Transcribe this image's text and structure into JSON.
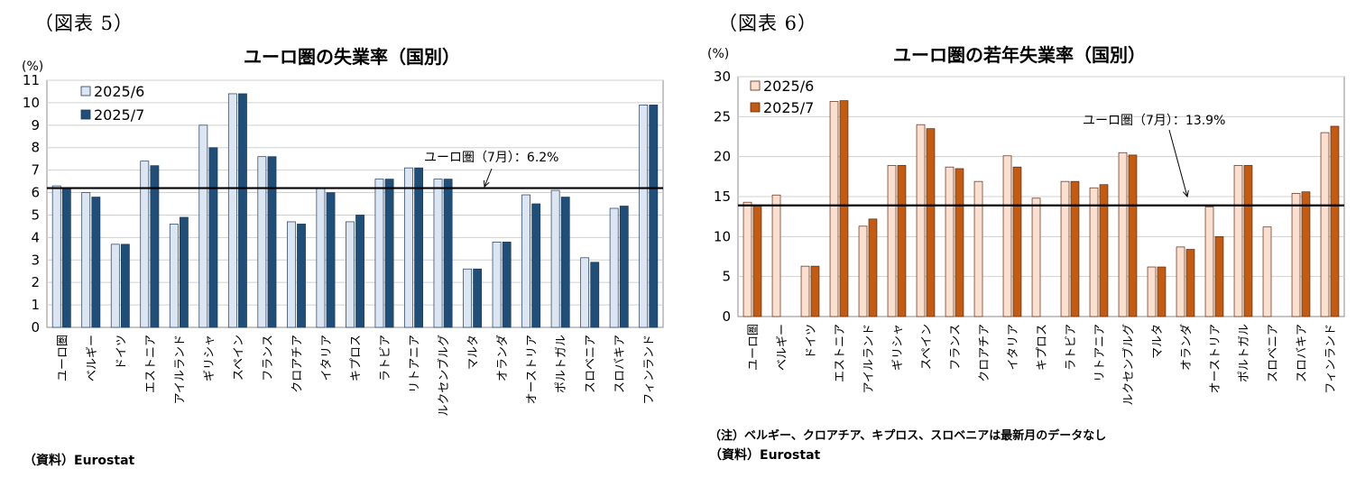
{
  "fig5": {
    "label": "（図表 5）",
    "source": "（資料）Eurostat"
  },
  "fig6": {
    "label": "（図表 6）",
    "note": "（注）ベルギー、クロアチア、キプロス、スロベニアは最新月のデータなし",
    "source": "（資料）Eurostat"
  },
  "chart_data": [
    {
      "type": "bar",
      "title": "ユーロ圏の失業率（国別）",
      "ylabel": "(%)",
      "xlabel": "",
      "ylim": [
        0,
        11
      ],
      "ytick_step": 1,
      "grid": true,
      "legend_position": "top-left",
      "categories": [
        "ユーロ圏",
        "ベルギー",
        "ドイツ",
        "エストニア",
        "アイルランド",
        "ギリシャ",
        "スペイン",
        "フランス",
        "クロアチア",
        "イタリア",
        "キプロス",
        "ラトビア",
        "リトアニア",
        "ルクセンブルグ",
        "マルタ",
        "オランダ",
        "オーストリア",
        "ポルトガル",
        "スロベニア",
        "スロバキア",
        "フィンランド"
      ],
      "series": [
        {
          "name": "2025/6",
          "color": "#dce6f2",
          "values": [
            6.3,
            6.0,
            3.7,
            7.4,
            4.6,
            9.0,
            10.4,
            7.6,
            4.7,
            6.2,
            4.7,
            6.6,
            7.1,
            6.6,
            2.6,
            3.8,
            5.9,
            6.1,
            3.1,
            5.3,
            9.9
          ]
        },
        {
          "name": "2025/7",
          "color": "#1f4e79",
          "values": [
            6.2,
            5.8,
            3.7,
            7.2,
            4.9,
            8.0,
            10.4,
            7.6,
            4.6,
            6.0,
            5.0,
            6.6,
            7.1,
            6.6,
            2.6,
            3.8,
            5.5,
            5.8,
            2.9,
            5.4,
            9.9
          ]
        }
      ],
      "reference_line": {
        "value": 6.2,
        "label": "ユーロ圏（7月）：6.2%"
      }
    },
    {
      "type": "bar",
      "title": "ユーロ圏の若年失業率（国別）",
      "ylabel": "(%)",
      "xlabel": "",
      "ylim": [
        0,
        30
      ],
      "ytick_step": 5,
      "grid": true,
      "legend_position": "top-left",
      "categories": [
        "ユーロ圏",
        "ベルギー",
        "ドイツ",
        "エストニア",
        "アイルランド",
        "ギリシャ",
        "スペイン",
        "フランス",
        "クロアチア",
        "イタリア",
        "キプロス",
        "ラトビア",
        "リトアニア",
        "ルクセンブルグ",
        "マルタ",
        "オランダ",
        "オーストリア",
        "ポルトガル",
        "スロベニア",
        "スロバキア",
        "フィンランド"
      ],
      "series": [
        {
          "name": "2025/6",
          "color": "#fbe0d2",
          "values": [
            14.3,
            15.2,
            6.3,
            26.9,
            11.3,
            18.9,
            24.0,
            18.7,
            16.9,
            20.1,
            14.8,
            16.9,
            16.1,
            20.5,
            6.2,
            8.7,
            13.7,
            18.9,
            11.2,
            15.4,
            23.0
          ]
        },
        {
          "name": "2025/7",
          "color": "#c55a11",
          "values": [
            13.9,
            null,
            6.3,
            27.0,
            12.2,
            18.9,
            23.5,
            18.5,
            null,
            18.7,
            null,
            16.9,
            16.5,
            20.2,
            6.2,
            8.4,
            10.0,
            18.9,
            null,
            15.6,
            23.8
          ]
        }
      ],
      "reference_line": {
        "value": 13.9,
        "label": "ユーロ圏（7月）：13.9%"
      }
    }
  ]
}
